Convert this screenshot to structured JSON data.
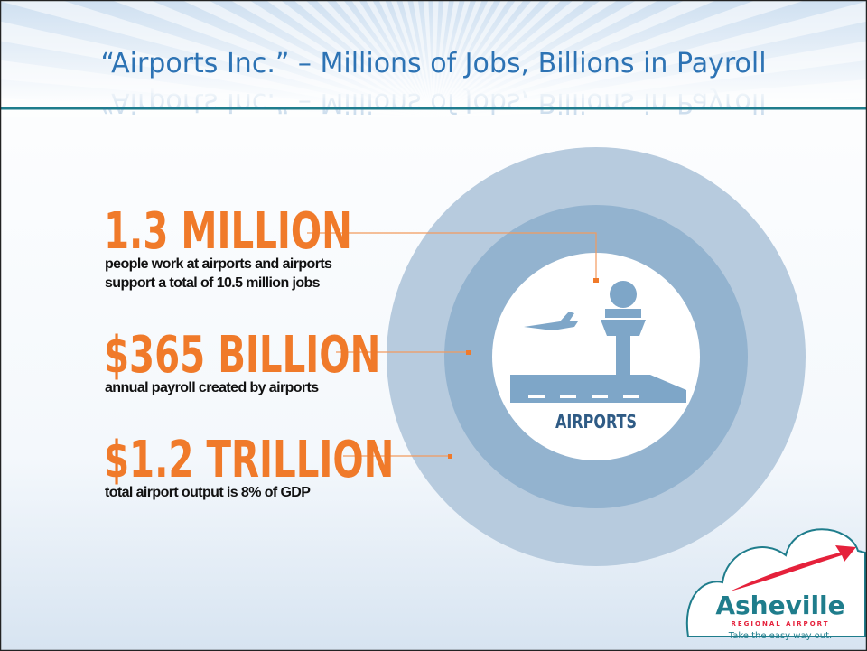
{
  "header": {
    "title": "“Airports Inc.” – Millions of Jobs, Billions in Payroll"
  },
  "stats": [
    {
      "headline": "1.3 MILLION",
      "description": [
        "people work at airports and airports",
        "support a total of 10.5 million jobs"
      ]
    },
    {
      "headline": "$365 BILLION",
      "description": [
        "annual payroll created by airports"
      ]
    },
    {
      "headline": "$1.2 TRILLION",
      "description": [
        "total airport output is 8% of GDP"
      ]
    }
  ],
  "center_label": "AIRPORTS",
  "logo": {
    "name": "Asheville",
    "subtitle": "REGIONAL AIRPORT",
    "tagline": "Take the easy way out."
  }
}
